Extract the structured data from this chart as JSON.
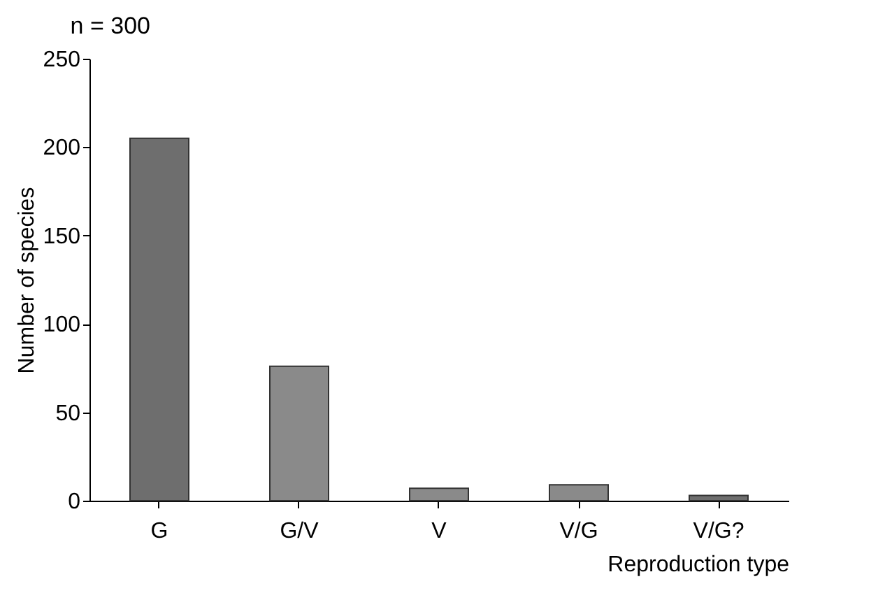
{
  "chart_data": {
    "type": "bar",
    "title": "n = 300",
    "xlabel": "Reproduction type",
    "ylabel": "Number of species",
    "categories": [
      "G",
      "G/V",
      "V",
      "V/G",
      "V/G?"
    ],
    "values": [
      205,
      76,
      7,
      9,
      3
    ],
    "colors": [
      "#6e6e6e",
      "#8a8a8a",
      "#8a8a8a",
      "#8a8a8a",
      "#6e6e6e"
    ],
    "ylim": [
      0,
      250
    ],
    "yticks": [
      0,
      50,
      100,
      150,
      200,
      250
    ],
    "grid": false,
    "legend": false
  }
}
